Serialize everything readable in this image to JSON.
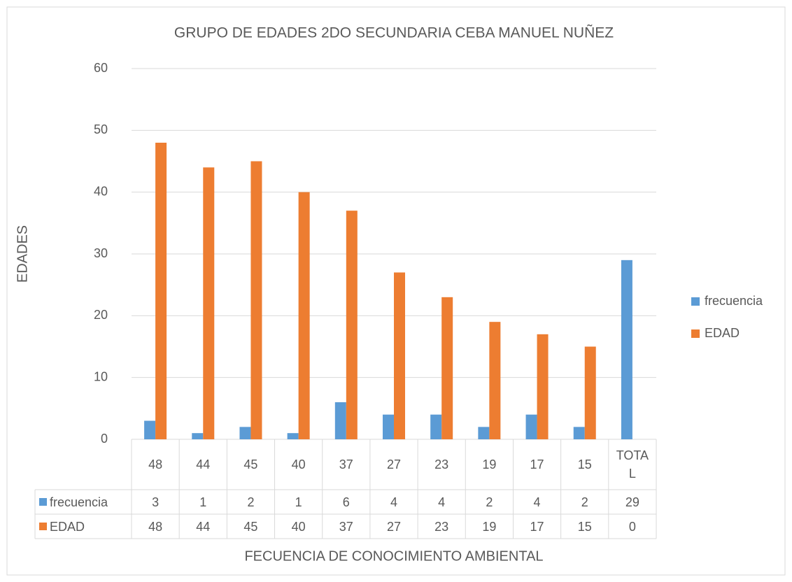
{
  "chart_data": {
    "type": "bar",
    "title": "GRUPO DE EDADES 2DO SECUNDARIA CEBA MANUEL NUÑEZ",
    "x_label": "FECUENCIA DE CONOCIMIENTO AMBIENTAL",
    "y_label": "EDADES",
    "categories": [
      "48",
      "44",
      "45",
      "40",
      "37",
      "27",
      "23",
      "19",
      "17",
      "15",
      "TOTAL"
    ],
    "series": [
      {
        "name": "frecuencia",
        "color": "#5b9bd5",
        "values": [
          3,
          1,
          2,
          1,
          6,
          4,
          4,
          2,
          4,
          2,
          29
        ]
      },
      {
        "name": "EDAD",
        "color": "#ed7d31",
        "values": [
          48,
          44,
          45,
          40,
          37,
          27,
          23,
          19,
          17,
          15,
          0
        ]
      }
    ],
    "ylim": [
      0,
      60
    ],
    "yticks": [
      0,
      10,
      20,
      30,
      40,
      50,
      60
    ],
    "grid": true,
    "legend": "right",
    "data_table": true
  }
}
